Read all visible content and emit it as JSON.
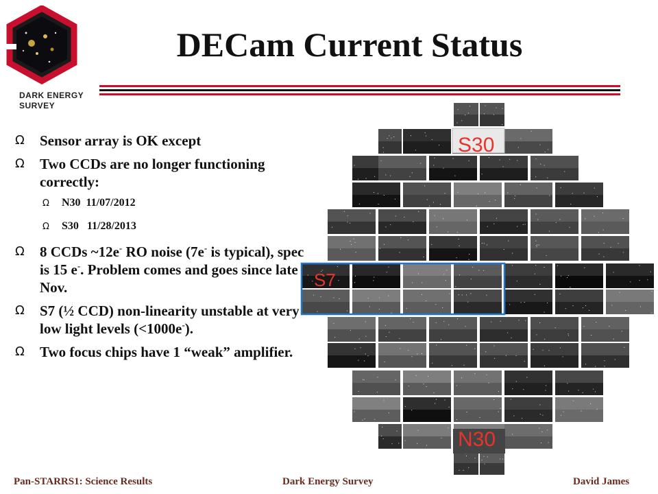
{
  "title": "DECam Current Status",
  "logo": {
    "line1": "DARK ENERGY",
    "line2": "SURVEY"
  },
  "bullets": {
    "marker": "Ω",
    "b1": "Sensor array is OK except",
    "b2": "Two CCDs are no longer functioning correctly:",
    "sub1": "N30  11/07/2012",
    "sub2": "S30   11/28/2013",
    "b3_p1": "8 CCDs ~12e",
    "b3_sup1": "-",
    "b3_p2": " RO noise (7e",
    "b3_sup2": "-",
    "b3_p3": " is typical), spec is 15 e",
    "b3_sup3": "-",
    "b3_p4": ". Problem comes and goes since late Nov.",
    "b4_p1": "S7 (½ CCD) non-linearity unstable at very low light levels (<1000e",
    "b4_sup": "-",
    "b4_p2": ").",
    "b5": "Two focus chips have 1 “weak” amplifier."
  },
  "labels": {
    "s30": "S30",
    "s7": "S7",
    "n30": "N30"
  },
  "colors": {
    "label_red": "#e8342b",
    "highlight_blue": "#2277c4",
    "rule_red": "#c8102e"
  },
  "footer": {
    "left": "Pan-STARRS1: Science Results",
    "center": "Dark Energy Survey",
    "right": "David James"
  }
}
